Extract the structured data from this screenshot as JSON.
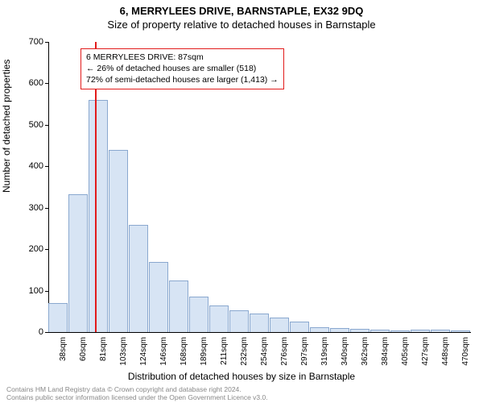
{
  "title": "6, MERRYLEES DRIVE, BARNSTAPLE, EX32 9DQ",
  "subtitle": "Size of property relative to detached houses in Barnstaple",
  "ylabel": "Number of detached properties",
  "xlabel": "Distribution of detached houses by size in Barnstaple",
  "chart": {
    "type": "histogram",
    "ylim": [
      0,
      700
    ],
    "ytick_step": 100,
    "yticks": [
      0,
      100,
      200,
      300,
      400,
      500,
      600,
      700
    ],
    "categories": [
      "38sqm",
      "60sqm",
      "81sqm",
      "103sqm",
      "124sqm",
      "146sqm",
      "168sqm",
      "189sqm",
      "211sqm",
      "232sqm",
      "254sqm",
      "276sqm",
      "297sqm",
      "319sqm",
      "340sqm",
      "362sqm",
      "384sqm",
      "405sqm",
      "427sqm",
      "448sqm",
      "470sqm"
    ],
    "values": [
      70,
      333,
      560,
      440,
      258,
      170,
      125,
      85,
      65,
      52,
      45,
      36,
      25,
      12,
      10,
      8,
      6,
      3,
      6,
      6,
      3
    ],
    "bar_fill": "#d7e4f4",
    "bar_stroke": "#8aa8cf",
    "background": "#ffffff",
    "axis_color": "#000000",
    "marker": {
      "position_index": 2.3,
      "color": "#e21b1b",
      "height_value": 700
    }
  },
  "annotation": {
    "border_color": "#e21b1b",
    "lines": {
      "line1": "6 MERRYLEES DRIVE: 87sqm",
      "line2": "← 26% of detached houses are smaller (518)",
      "line3": "72% of semi-detached houses are larger (1,413) →"
    }
  },
  "footer": {
    "line1": "Contains HM Land Registry data © Crown copyright and database right 2024.",
    "line2": "Contains public sector information licensed under the Open Government Licence v3.0."
  }
}
